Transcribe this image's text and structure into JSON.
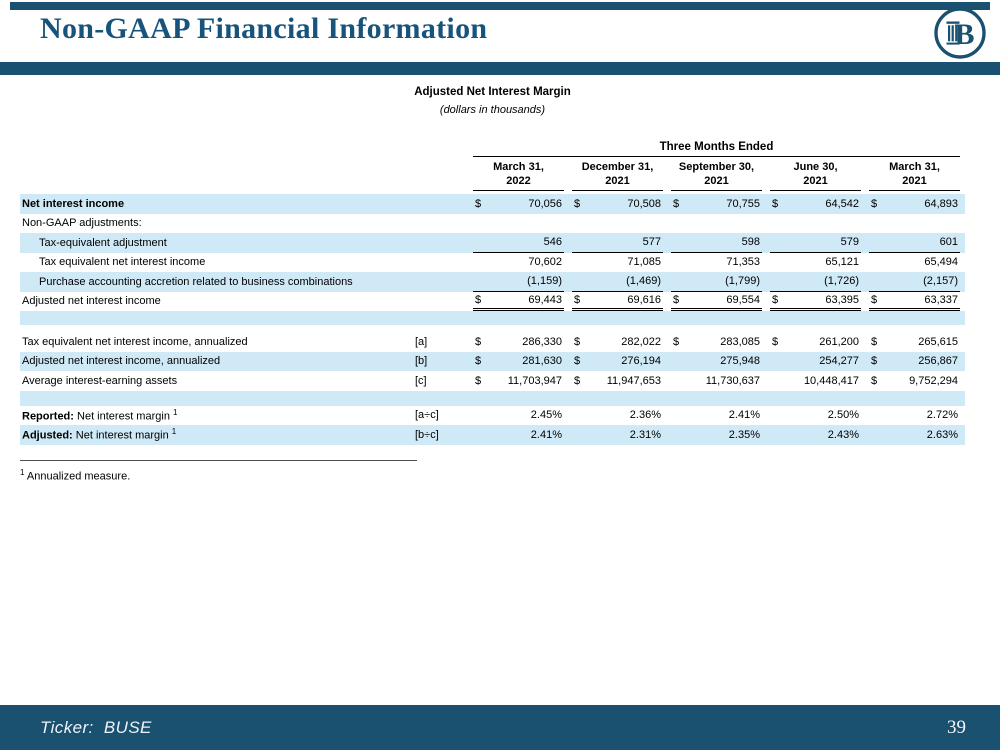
{
  "slide": {
    "title": "Non-GAAP Financial Information",
    "ticker": "Ticker:  BUSE",
    "page_number": "39"
  },
  "logo": {
    "icon": "busey-bank-logo",
    "letter": "B"
  },
  "table": {
    "title": "Adjusted Net Interest Margin",
    "subtitle": "(dollars in thousands)",
    "period_header": "Three Months Ended",
    "columns": [
      {
        "line1": "March 31,",
        "line2": "2022"
      },
      {
        "line1": "December 31,",
        "line2": "2021"
      },
      {
        "line1": "September 30,",
        "line2": "2021"
      },
      {
        "line1": "June 30,",
        "line2": "2021"
      },
      {
        "line1": "March 31,",
        "line2": "2021"
      }
    ],
    "rows": [
      {
        "label": "Net interest income",
        "bold": true,
        "indent": 0,
        "bg": "blue",
        "ref": "",
        "dollars": [
          true,
          true,
          true,
          true,
          true
        ],
        "values": [
          "70,056",
          "70,508",
          "70,755",
          "64,542",
          "64,893"
        ],
        "underline": "none"
      },
      {
        "label": "Non-GAAP adjustments:",
        "indent": 0,
        "bg": "white",
        "ref": "",
        "values": null
      },
      {
        "label": "Tax-equivalent adjustment",
        "indent": 1,
        "bg": "blue",
        "ref": "",
        "values": [
          "546",
          "577",
          "598",
          "579",
          "601"
        ],
        "underline": "single"
      },
      {
        "label": "Tax equivalent net interest income",
        "indent": 1,
        "bg": "white",
        "ref": "",
        "values": [
          "70,602",
          "71,085",
          "71,353",
          "65,121",
          "65,494"
        ],
        "underline": "none"
      },
      {
        "label": "Purchase accounting accretion related to business combinations",
        "indent": 1,
        "bg": "blue",
        "ref": "",
        "values": [
          "(1,159)",
          "(1,469)",
          "(1,799)",
          "(1,726)",
          "(2,157)"
        ],
        "underline": "single"
      },
      {
        "label": "Adjusted net interest income",
        "indent": 0,
        "bg": "white",
        "ref": "",
        "dollars": [
          true,
          true,
          true,
          true,
          true
        ],
        "values": [
          "69,443",
          "69,616",
          "69,554",
          "63,395",
          "63,337"
        ],
        "underline": "double"
      },
      {
        "spacer": true,
        "bg": "blue",
        "height": 14
      },
      {
        "spacer": true,
        "bg": "white",
        "height": 7
      },
      {
        "label": "Tax equivalent net interest income, annualized",
        "indent": 0,
        "bg": "white",
        "ref": "[a]",
        "dollars": [
          true,
          true,
          true,
          true,
          true
        ],
        "values": [
          "286,330",
          "282,022",
          "283,085",
          "261,200",
          "265,615"
        ],
        "underline": "none"
      },
      {
        "label": "Adjusted net interest income, annualized",
        "indent": 0,
        "bg": "blue",
        "ref": "[b]",
        "dollars": [
          true,
          true,
          false,
          false,
          true
        ],
        "values": [
          "281,630",
          "276,194",
          "275,948",
          "254,277",
          "256,867"
        ],
        "underline": "none"
      },
      {
        "label": "Average interest-earning assets",
        "indent": 0,
        "bg": "white",
        "ref": "[c]",
        "dollars": [
          true,
          true,
          false,
          false,
          true
        ],
        "values": [
          "11,703,947",
          "11,947,653",
          "11,730,637",
          "10,448,417",
          "9,752,294"
        ],
        "underline": "none"
      },
      {
        "spacer": true,
        "bg": "blue",
        "height": 15
      },
      {
        "label_bold": "Reported:",
        "label": " Net interest margin ",
        "sup": "1",
        "indent": 0,
        "bg": "white",
        "ref": "[a÷c]",
        "values": [
          "2.45%",
          "2.36%",
          "2.41%",
          "2.50%",
          "2.72%"
        ],
        "underline": "none"
      },
      {
        "label_bold": "Adjusted:",
        "label": " Net interest margin ",
        "sup": "1",
        "indent": 0,
        "bg": "blue",
        "ref": "[b÷c]",
        "values": [
          "2.41%",
          "2.31%",
          "2.35%",
          "2.43%",
          "2.63%"
        ],
        "underline": "none"
      }
    ],
    "footnote_marker": "1",
    "footnote_text": "Annualized measure."
  },
  "colors": {
    "bar_navy": "#1a5070",
    "title_blue": "#17537b",
    "row_blue": "#cfe9f7",
    "text": "#000000",
    "footer_text": "#eef4f8"
  }
}
